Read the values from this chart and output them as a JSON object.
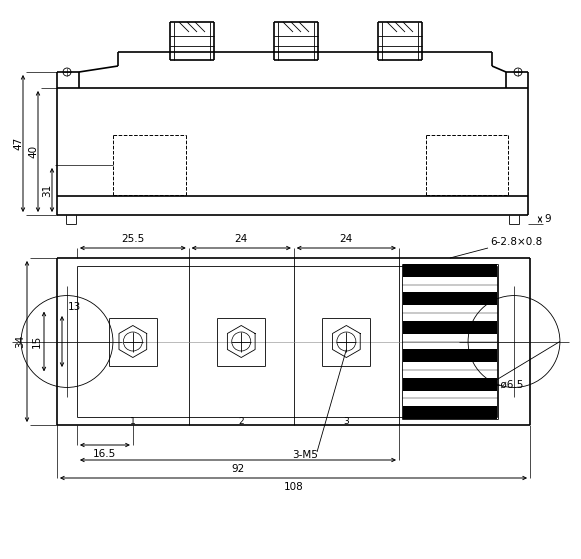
{
  "bg_color": "#ffffff",
  "line_color": "#000000",
  "fig_width": 5.81,
  "fig_height": 5.59,
  "dpi": 100
}
